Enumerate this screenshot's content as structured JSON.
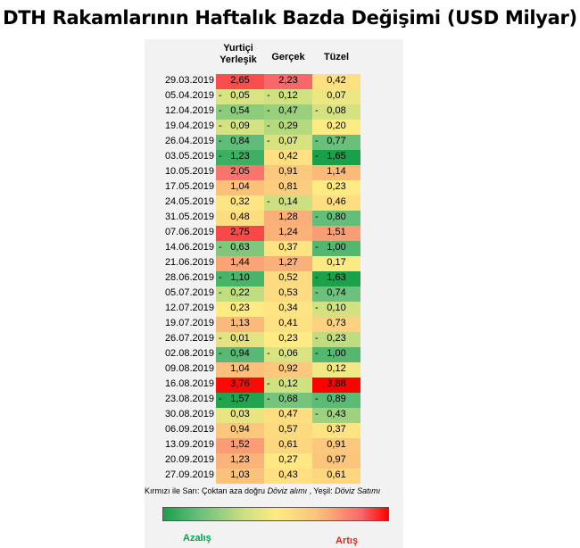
{
  "title": "DTH Rakamlarının Haftalık Bazda Değişimi (USD Milyar)",
  "columns": {
    "col1_line1": "Yurtiçi",
    "col1_line2": "Yerleşik",
    "col2": "Gerçek",
    "col3": "Tüzel"
  },
  "note": {
    "prefix": "Kırmızı ile Sarı: Çoktan aza doğru ",
    "italic1": "Döviz alımı",
    "middle": " , Yeşil: ",
    "italic2": "Döviz Satımı"
  },
  "legend": {
    "decrease": "Azalış",
    "increase": "Artış"
  },
  "colors": {
    "deep_green": "#1aa04a",
    "green": "#63be7b",
    "yellow": "#ffeb84",
    "orange": "#fbc47c",
    "red": "#f8696b",
    "deep_red": "#ff0000"
  },
  "chart_data": {
    "type": "heatmap",
    "title": "DTH Rakamlarının Haftalık Bazda Değişimi (USD Milyar)",
    "columns": [
      "Yurtiçi Yerleşik",
      "Gerçek",
      "Tüzel"
    ],
    "rows": [
      {
        "date": "29.03.2019",
        "values": [
          2.65,
          2.23,
          0.42
        ],
        "display": [
          "2,65",
          "2,23",
          "0,42"
        ]
      },
      {
        "date": "05.04.2019",
        "values": [
          -0.05,
          -0.12,
          0.07
        ],
        "display": [
          "0,05",
          "0,12",
          "0,07"
        ]
      },
      {
        "date": "12.04.2019",
        "values": [
          -0.54,
          -0.47,
          -0.08
        ],
        "display": [
          "0,54",
          "0,47",
          "0,08"
        ]
      },
      {
        "date": "19.04.2019",
        "values": [
          -0.09,
          -0.29,
          0.2
        ],
        "display": [
          "0,09",
          "0,29",
          "0,20"
        ]
      },
      {
        "date": "26.04.2019",
        "values": [
          -0.84,
          -0.07,
          -0.77
        ],
        "display": [
          "0,84",
          "0,07",
          "0,77"
        ]
      },
      {
        "date": "03.05.2019",
        "values": [
          -1.23,
          0.42,
          -1.65
        ],
        "display": [
          "1,23",
          "0,42",
          "1,65"
        ]
      },
      {
        "date": "10.05.2019",
        "values": [
          2.05,
          0.91,
          1.14
        ],
        "display": [
          "2,05",
          "0,91",
          "1,14"
        ]
      },
      {
        "date": "17.05.2019",
        "values": [
          1.04,
          0.81,
          0.23
        ],
        "display": [
          "1,04",
          "0,81",
          "0,23"
        ]
      },
      {
        "date": "24.05.2019",
        "values": [
          0.32,
          -0.14,
          0.46
        ],
        "display": [
          "0,32",
          "0,14",
          "0,46"
        ]
      },
      {
        "date": "31.05.2019",
        "values": [
          0.48,
          1.28,
          -0.8
        ],
        "display": [
          "0,48",
          "1,28",
          "0,80"
        ]
      },
      {
        "date": "07.06.2019",
        "values": [
          2.75,
          1.24,
          1.51
        ],
        "display": [
          "2,75",
          "1,24",
          "1,51"
        ]
      },
      {
        "date": "14.06.2019",
        "values": [
          -0.63,
          0.37,
          -1.0
        ],
        "display": [
          "0,63",
          "0,37",
          "1,00"
        ]
      },
      {
        "date": "21.06.2019",
        "values": [
          1.44,
          1.27,
          0.17
        ],
        "display": [
          "1,44",
          "1,27",
          "0,17"
        ]
      },
      {
        "date": "28.06.2019",
        "values": [
          -1.1,
          0.52,
          -1.63
        ],
        "display": [
          "1,10",
          "0,52",
          "1,63"
        ]
      },
      {
        "date": "05.07.2019",
        "values": [
          -0.22,
          0.53,
          -0.74
        ],
        "display": [
          "0,22",
          "0,53",
          "0,74"
        ]
      },
      {
        "date": "12.07.2019",
        "values": [
          0.23,
          0.34,
          -0.1
        ],
        "display": [
          "0,23",
          "0,34",
          "0,10"
        ]
      },
      {
        "date": "19.07.2019",
        "values": [
          1.13,
          0.41,
          0.73
        ],
        "display": [
          "1,13",
          "0,41",
          "0,73"
        ]
      },
      {
        "date": "26.07.2019",
        "values": [
          -0.01,
          0.23,
          -0.23
        ],
        "display": [
          "0,01",
          "0,23",
          "0,23"
        ]
      },
      {
        "date": "02.08.2019",
        "values": [
          -0.94,
          -0.06,
          -1.0
        ],
        "display": [
          "0,94",
          "0,06",
          "1,00"
        ]
      },
      {
        "date": "09.08.2019",
        "values": [
          1.04,
          0.92,
          0.12
        ],
        "display": [
          "1,04",
          "0,92",
          "0,12"
        ]
      },
      {
        "date": "16.08.2019",
        "values": [
          3.76,
          -0.12,
          3.88
        ],
        "display": [
          "3,76",
          "0,12",
          "3,88"
        ]
      },
      {
        "date": "23.08.2019",
        "values": [
          -1.57,
          -0.68,
          -0.89
        ],
        "display": [
          "1,57",
          "0,68",
          "0,89"
        ]
      },
      {
        "date": "30.08.2019",
        "values": [
          0.03,
          0.47,
          -0.43
        ],
        "display": [
          "0,03",
          "0,47",
          "0,43"
        ]
      },
      {
        "date": "06.09.2019",
        "values": [
          0.94,
          0.57,
          0.37
        ],
        "display": [
          "0,94",
          "0,57",
          "0,37"
        ]
      },
      {
        "date": "13.09.2019",
        "values": [
          1.52,
          0.61,
          0.91
        ],
        "display": [
          "1,52",
          "0,61",
          "0,91"
        ]
      },
      {
        "date": "20.09.2019",
        "values": [
          1.23,
          0.27,
          0.97
        ],
        "display": [
          "1,23",
          "0,27",
          "0,97"
        ]
      },
      {
        "date": "27.09.2019",
        "values": [
          1.03,
          0.43,
          0.61
        ],
        "display": [
          "1,03",
          "0,43",
          "0,61"
        ]
      }
    ],
    "color_scale": {
      "low": "green",
      "mid": "yellow",
      "high": "red"
    },
    "negative_marker": "-"
  }
}
